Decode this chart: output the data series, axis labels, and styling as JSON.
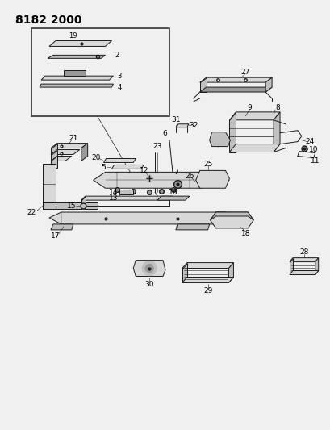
{
  "title": "8182 2000",
  "bg_color": "#f0f0f0",
  "line_color": "#1a1a1a",
  "label_color": "#000000",
  "title_fontsize": 10,
  "label_fontsize": 6.5,
  "figsize": [
    4.1,
    5.33
  ],
  "dpi": 100,
  "lw": 0.7
}
